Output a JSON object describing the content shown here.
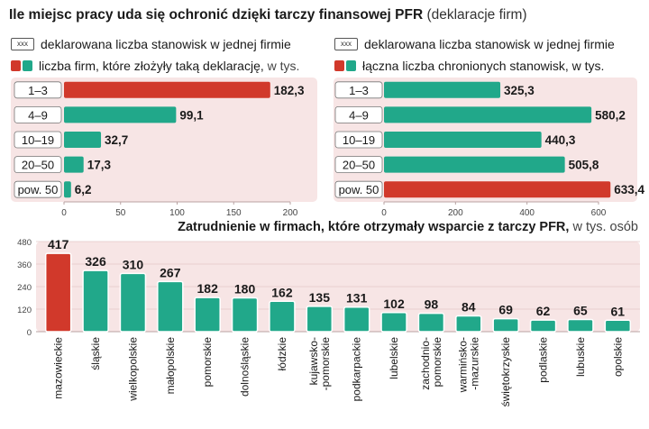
{
  "title": {
    "main": "Ile miejsc pracy uda się ochronić dzięki tarczy finansowej PFR",
    "sub": "(deklaracje firm)"
  },
  "legend_left": {
    "key_text": "xxx",
    "item1": "deklarowana liczba stanowisk w jednej firmie",
    "item2": "liczba firm, które złożyły taką deklarację,",
    "item2_unit": "w tys."
  },
  "legend_right": {
    "key_text": "xxx",
    "item1": "deklarowana liczba stanowisk w jednej firmie",
    "item2": "łączna liczba chronionych stanowisk, w tys."
  },
  "bottom_title": {
    "main": "Zatrudnienie w firmach, które otrzymały wsparcie z tarczy PFR,",
    "sub": "w tys. osób"
  },
  "colors": {
    "red": "#d1392b",
    "green": "#21a88a",
    "panel": "#f7e5e5",
    "axis": "#b9a2a2",
    "text": "#1a1a1a"
  },
  "chart_data": [
    {
      "type": "bar",
      "orientation": "horizontal",
      "categories": [
        "1–3",
        "4–9",
        "10–19",
        "20–50",
        "pow. 50"
      ],
      "values": [
        182.3,
        99.1,
        32.7,
        17.3,
        6.2
      ],
      "value_labels": [
        "182,3",
        "99,1",
        "32,7",
        "17,3",
        "6,2"
      ],
      "highlight_index": 0,
      "xlim": [
        0,
        200
      ],
      "xticks": [
        0,
        50,
        100,
        150,
        200
      ],
      "grid": false
    },
    {
      "type": "bar",
      "orientation": "horizontal",
      "categories": [
        "1–3",
        "4–9",
        "10–19",
        "20–50",
        "pow. 50"
      ],
      "values": [
        325.3,
        580.2,
        440.3,
        505.8,
        633.4
      ],
      "value_labels": [
        "325,3",
        "580,2",
        "440,3",
        "505,8",
        "633,4"
      ],
      "highlight_index": 4,
      "xlim": [
        0,
        600
      ],
      "xticks": [
        0,
        200,
        400,
        600
      ],
      "grid": false
    },
    {
      "type": "bar",
      "orientation": "vertical",
      "categories": [
        "mazowieckie",
        "śląskie",
        "wielkopolskie",
        "małopolskie",
        "pomorskie",
        "dolnośląskie",
        "łódzkie",
        "kujawsko-\n-pomorskie",
        "podkarpackie",
        "lubelskie",
        "zachodnio-\npomorskie",
        "warmińsko-\n-mazurskie",
        "świętokrzyskie",
        "podlaskie",
        "lubuskie",
        "opolskie"
      ],
      "values": [
        417,
        326,
        310,
        267,
        182,
        180,
        162,
        135,
        131,
        102,
        98,
        84,
        69,
        62,
        65,
        61
      ],
      "highlight_index": 0,
      "ylim": [
        0,
        480
      ],
      "yticks": [
        0,
        120,
        240,
        360,
        480
      ],
      "grid": true
    }
  ]
}
